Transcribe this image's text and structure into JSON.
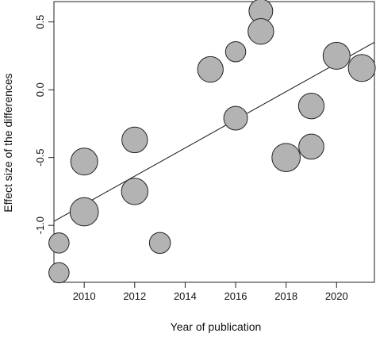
{
  "chart_data": {
    "type": "scatter",
    "title": "",
    "xlabel": "Year of publication",
    "ylabel": "Effect size of the differences",
    "xlim": [
      2008.8,
      2021.5
    ],
    "ylim": [
      -1.42,
      0.65
    ],
    "xticks": [
      2010,
      2012,
      2014,
      2016,
      2018,
      2020
    ],
    "xtick_labels": [
      "2010",
      "2012",
      "2014",
      "2016",
      "2018",
      "2020"
    ],
    "yticks": [
      -1.0,
      -0.5,
      0.0,
      0.5
    ],
    "ytick_labels": [
      "-1.0",
      "-0.5",
      "0.0",
      "0.5"
    ],
    "grid": false,
    "legend": "none",
    "point_color": "#b3b3b3",
    "points": [
      {
        "x": 2009,
        "y": -1.13,
        "weight": 0.75
      },
      {
        "x": 2009,
        "y": -1.35,
        "weight": 0.75
      },
      {
        "x": 2010,
        "y": -0.53,
        "weight": 1.0
      },
      {
        "x": 2010,
        "y": -0.9,
        "weight": 1.05
      },
      {
        "x": 2012,
        "y": -0.37,
        "weight": 0.95
      },
      {
        "x": 2012,
        "y": -0.75,
        "weight": 0.98
      },
      {
        "x": 2013,
        "y": -1.13,
        "weight": 0.78
      },
      {
        "x": 2015,
        "y": 0.15,
        "weight": 0.95
      },
      {
        "x": 2016,
        "y": 0.28,
        "weight": 0.75
      },
      {
        "x": 2016,
        "y": -0.21,
        "weight": 0.88
      },
      {
        "x": 2017,
        "y": 0.58,
        "weight": 0.88
      },
      {
        "x": 2017,
        "y": 0.43,
        "weight": 0.95
      },
      {
        "x": 2018,
        "y": -0.5,
        "weight": 1.05
      },
      {
        "x": 2019,
        "y": -0.12,
        "weight": 0.95
      },
      {
        "x": 2019,
        "y": -0.42,
        "weight": 0.93
      },
      {
        "x": 2020,
        "y": 0.25,
        "weight": 1.0
      },
      {
        "x": 2021,
        "y": 0.16,
        "weight": 1.0
      }
    ],
    "trend_line": {
      "x": [
        2008.8,
        2021.5
      ],
      "y": [
        -0.97,
        0.35
      ]
    }
  }
}
